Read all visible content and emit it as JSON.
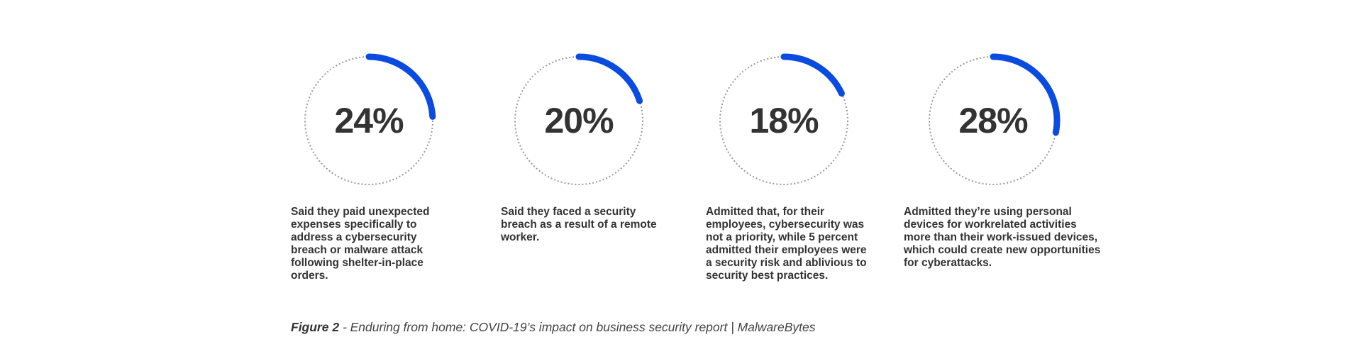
{
  "chart_data": {
    "type": "radial-progress",
    "colors": {
      "arc": "#0a4be0",
      "track": "#999999",
      "text": "#333333"
    },
    "items": [
      {
        "value": 24,
        "label": "24%",
        "description": "Said they paid unexpected expenses specifically to address a cybersecurity breach or malware attack following shelter-in-place orders."
      },
      {
        "value": 20,
        "label": "20%",
        "description": "Said they faced a security breach as a result of a remote worker."
      },
      {
        "value": 18,
        "label": "18%",
        "description": "Admitted that, for their employees, cybersecurity was not a priority, while 5 percent admitted their employees were a security risk and ablivious to security best practices."
      },
      {
        "value": 28,
        "label": "28%",
        "description": "Admitted they’re using personal devices for workrelated activities more than their work-issued devices, which could create new opportunities for cyberattacks."
      }
    ]
  },
  "caption": {
    "lead": "Figure 2",
    "text": " - Enduring from home: COVID-19’s impact on business security report | MalwareBytes"
  }
}
